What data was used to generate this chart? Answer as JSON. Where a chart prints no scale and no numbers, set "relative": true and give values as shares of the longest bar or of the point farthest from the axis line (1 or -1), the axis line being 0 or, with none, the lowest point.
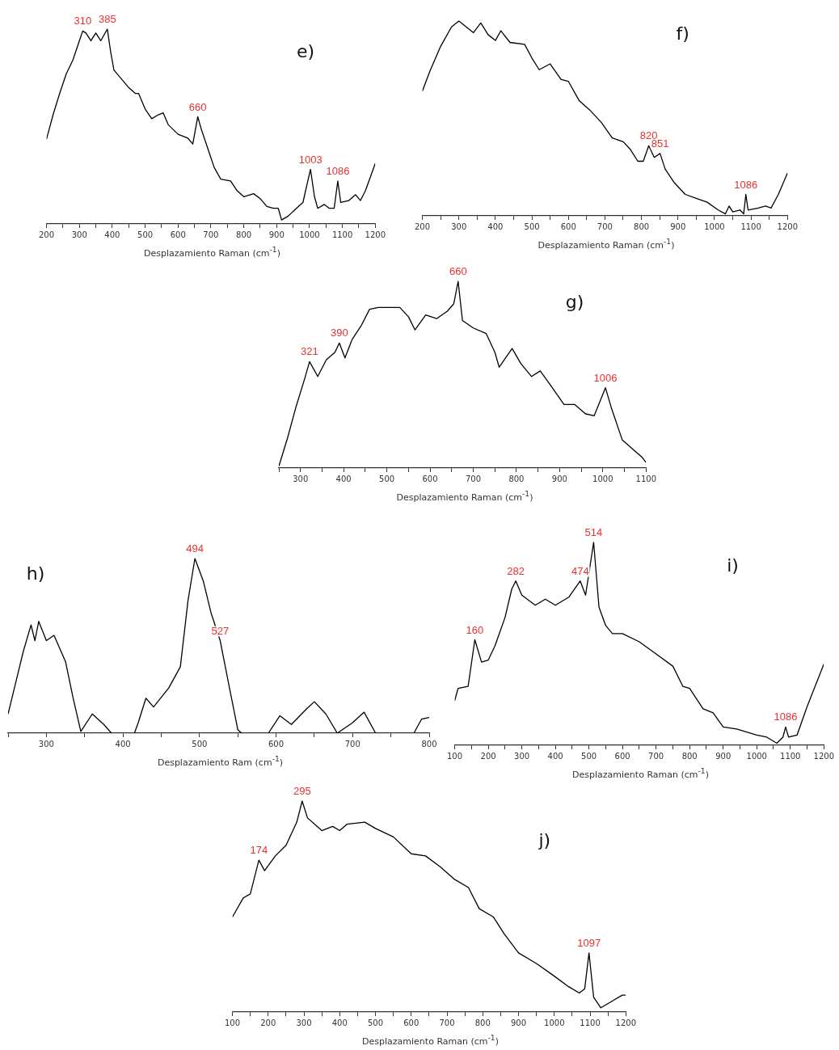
{
  "chart_data": [
    {
      "type": "line",
      "title": "e)",
      "xlabel": "Desplazamiento Raman (cm$^{-1}$)",
      "relative": true,
      "color": "#000000",
      "xlim": [
        200,
        1200
      ],
      "xticks": [
        200,
        {
          "value": 250,
          "label": null
        },
        300,
        {
          "value": 350,
          "label": null
        },
        400,
        {
          "value": 450,
          "label": null
        },
        500,
        {
          "value": 550,
          "label": null
        },
        600,
        {
          "value": 650,
          "label": null
        },
        700,
        {
          "value": 750,
          "label": null
        },
        800,
        {
          "value": 850,
          "label": null
        },
        900,
        {
          "value": 950,
          "label": null
        },
        1000,
        {
          "value": 1050,
          "label": null
        },
        1100,
        {
          "value": 1150,
          "label": null
        },
        1200
      ],
      "x": [
        200,
        220,
        240,
        260,
        280,
        300,
        310,
        320,
        335,
        350,
        365,
        375,
        385,
        395,
        405,
        430,
        450,
        470,
        480,
        500,
        520,
        540,
        555,
        570,
        600,
        630,
        645,
        660,
        672,
        690,
        710,
        730,
        760,
        780,
        800,
        830,
        850,
        870,
        890,
        905,
        915,
        935,
        960,
        980,
        992,
        1003,
        1015,
        1025,
        1045,
        1060,
        1075,
        1086,
        1095,
        1120,
        1140,
        1155,
        1170,
        1200
      ],
      "values": [
        0.435,
        0.56,
        0.67,
        0.77,
        0.84,
        0.94,
        0.99,
        0.98,
        0.94,
        0.98,
        0.94,
        0.97,
        1.0,
        0.885,
        0.79,
        0.74,
        0.7,
        0.67,
        0.67,
        0.59,
        0.54,
        0.56,
        0.57,
        0.51,
        0.46,
        0.44,
        0.41,
        0.55,
        0.48,
        0.39,
        0.29,
        0.23,
        0.22,
        0.17,
        0.14,
        0.155,
        0.13,
        0.09,
        0.08,
        0.08,
        0.02,
        0.04,
        0.08,
        0.11,
        0.2,
        0.28,
        0.14,
        0.08,
        0.1,
        0.08,
        0.08,
        0.22,
        0.11,
        0.12,
        0.15,
        0.12,
        0.17,
        0.31
      ],
      "annotations": [
        {
          "text": "310",
          "x": 310,
          "y": 0.99
        },
        {
          "text": "385",
          "x": 385,
          "y": 1.0
        },
        {
          "text": "660",
          "x": 660,
          "y": 0.55
        },
        {
          "text": "1003",
          "x": 1003,
          "y": 0.28
        },
        {
          "text": "1086",
          "x": 1086,
          "y": 0.22
        }
      ]
    },
    {
      "type": "line",
      "title": "f)",
      "xlabel": "Desplazamiento Raman (cm$^{-1}$)",
      "relative": true,
      "color": "#000000",
      "xlim": [
        200,
        1200
      ],
      "xticks": [
        200,
        {
          "value": 250,
          "label": null
        },
        300,
        {
          "value": 350,
          "label": null
        },
        400,
        {
          "value": 450,
          "label": null
        },
        500,
        {
          "value": 550,
          "label": null
        },
        600,
        {
          "value": 650,
          "label": null
        },
        700,
        {
          "value": 750,
          "label": null
        },
        800,
        {
          "value": 850,
          "label": null
        },
        900,
        {
          "value": 950,
          "label": null
        },
        1000,
        {
          "value": 1050,
          "label": null
        },
        1100,
        {
          "value": 1150,
          "label": null
        },
        1200
      ],
      "x": [
        200,
        220,
        250,
        280,
        300,
        320,
        340,
        360,
        380,
        400,
        415,
        440,
        480,
        500,
        520,
        550,
        580,
        600,
        630,
        660,
        690,
        720,
        750,
        770,
        790,
        805,
        820,
        835,
        851,
        865,
        890,
        920,
        950,
        980,
        1010,
        1030,
        1040,
        1050,
        1070,
        1080,
        1086,
        1092,
        1120,
        1140,
        1155,
        1175,
        1200
      ],
      "values": [
        0.64,
        0.74,
        0.87,
        0.97,
        1.0,
        0.97,
        0.94,
        0.99,
        0.93,
        0.9,
        0.95,
        0.89,
        0.88,
        0.81,
        0.75,
        0.78,
        0.7,
        0.69,
        0.59,
        0.54,
        0.48,
        0.4,
        0.38,
        0.34,
        0.28,
        0.28,
        0.36,
        0.3,
        0.32,
        0.24,
        0.17,
        0.11,
        0.09,
        0.07,
        0.03,
        0.01,
        0.05,
        0.02,
        0.03,
        0.01,
        0.11,
        0.03,
        0.04,
        0.05,
        0.04,
        0.11,
        0.22
      ],
      "annotations": [
        {
          "text": "820",
          "x": 820,
          "y": 0.36
        },
        {
          "text": "851",
          "x": 851,
          "y": 0.32
        },
        {
          "text": "1086",
          "x": 1086,
          "y": 0.11
        }
      ]
    },
    {
      "type": "line",
      "title": "g)",
      "xlabel": "Desplazamiento Raman (cm$^{-1}$)",
      "relative": true,
      "color": "#000000",
      "xlim": [
        250,
        1100
      ],
      "xticks": [
        {
          "value": 250,
          "label": null
        },
        300,
        {
          "value": 350,
          "label": null
        },
        400,
        {
          "value": 450,
          "label": null
        },
        500,
        {
          "value": 550,
          "label": null
        },
        600,
        {
          "value": 650,
          "label": null
        },
        700,
        {
          "value": 750,
          "label": null
        },
        800,
        {
          "value": 850,
          "label": null
        },
        900,
        {
          "value": 950,
          "label": null
        },
        1000,
        {
          "value": 1050,
          "label": null
        },
        1100
      ],
      "x": [
        250,
        270,
        290,
        310,
        321,
        340,
        360,
        380,
        390,
        403,
        420,
        440,
        460,
        480,
        500,
        530,
        550,
        565,
        590,
        615,
        640,
        655,
        665,
        675,
        700,
        730,
        750,
        760,
        775,
        790,
        810,
        835,
        855,
        880,
        910,
        935,
        960,
        980,
        1006,
        1020,
        1045,
        1070,
        1090,
        1100
      ],
      "values": [
        0.01,
        0.16,
        0.33,
        0.48,
        0.57,
        0.49,
        0.58,
        0.62,
        0.67,
        0.59,
        0.69,
        0.76,
        0.85,
        0.86,
        0.86,
        0.86,
        0.81,
        0.74,
        0.82,
        0.8,
        0.84,
        0.88,
        1.0,
        0.79,
        0.75,
        0.72,
        0.62,
        0.54,
        0.59,
        0.64,
        0.56,
        0.49,
        0.52,
        0.44,
        0.34,
        0.34,
        0.29,
        0.28,
        0.43,
        0.32,
        0.15,
        0.1,
        0.06,
        0.03
      ],
      "annotations": [
        {
          "text": "321",
          "x": 321,
          "y": 0.57
        },
        {
          "text": "390",
          "x": 390,
          "y": 0.67
        },
        {
          "text": "660",
          "x": 665,
          "y": 1.0
        },
        {
          "text": "1006",
          "x": 1006,
          "y": 0.43
        }
      ]
    },
    {
      "type": "line",
      "title": "h)",
      "xlabel": "Desplazamiento Ram (cm$^{-1}$)",
      "relative": true,
      "color": "#000000",
      "xlim": [
        250,
        800
      ],
      "xticks": [
        {
          "value": 250,
          "label": null
        },
        300,
        {
          "value": 350,
          "label": null
        },
        400,
        {
          "value": 450,
          "label": null
        },
        500,
        {
          "value": 550,
          "label": null
        },
        600,
        {
          "value": 650,
          "label": null
        },
        700,
        {
          "value": 750,
          "label": null
        },
        800
      ],
      "x": [
        250,
        260,
        270,
        280,
        285,
        290,
        300,
        310,
        325,
        335,
        345,
        360,
        375,
        385,
        400,
        415,
        420,
        430,
        440,
        460,
        475,
        485,
        494,
        505,
        515,
        527,
        540,
        550,
        555,
        570,
        590,
        605,
        620,
        640,
        650,
        665,
        680,
        700,
        715,
        730,
        755,
        780,
        790,
        800
      ],
      "values": [
        0.11,
        0.29,
        0.47,
        0.62,
        0.53,
        0.64,
        0.53,
        0.56,
        0.41,
        0.2,
        0.01,
        0.11,
        0.05,
        0.0,
        null,
        0.0,
        0.06,
        0.2,
        0.15,
        0.26,
        0.38,
        0.76,
        1.0,
        0.87,
        0.69,
        0.53,
        0.24,
        0.02,
        0.0,
        null,
        0.0,
        0.1,
        0.05,
        0.14,
        0.18,
        0.11,
        0.0,
        0.06,
        0.12,
        0.0,
        null,
        0.0,
        0.08,
        0.09
      ],
      "annotations": [
        {
          "text": "494",
          "x": 494,
          "y": 1.0
        },
        {
          "text": "527",
          "x": 527,
          "y": 0.53
        }
      ]
    },
    {
      "type": "line",
      "title": "i)",
      "xlabel": "Desplazamiento Raman (cm$^{-1}$)",
      "relative": true,
      "color": "#000000",
      "xlim": [
        100,
        1200
      ],
      "xticks": [
        100,
        {
          "value": 150,
          "label": null
        },
        200,
        {
          "value": 250,
          "label": null
        },
        300,
        {
          "value": 350,
          "label": null
        },
        400,
        {
          "value": 450,
          "label": null
        },
        500,
        {
          "value": 550,
          "label": null
        },
        600,
        {
          "value": 650,
          "label": null
        },
        700,
        {
          "value": 750,
          "label": null
        },
        800,
        {
          "value": 850,
          "label": null
        },
        900,
        {
          "value": 950,
          "label": null
        },
        1000,
        {
          "value": 1050,
          "label": null
        },
        1100,
        {
          "value": 1150,
          "label": null
        },
        1200
      ],
      "x": [
        100,
        110,
        140,
        160,
        180,
        200,
        220,
        250,
        270,
        282,
        300,
        340,
        370,
        400,
        440,
        474,
        490,
        514,
        530,
        550,
        570,
        600,
        650,
        700,
        750,
        780,
        800,
        840,
        870,
        900,
        940,
        1000,
        1030,
        1060,
        1078,
        1086,
        1095,
        1120,
        1150,
        1200
      ],
      "values": [
        0.22,
        0.28,
        0.29,
        0.52,
        0.41,
        0.42,
        0.49,
        0.63,
        0.77,
        0.81,
        0.74,
        0.69,
        0.72,
        0.69,
        0.73,
        0.81,
        0.74,
        1.0,
        0.68,
        0.59,
        0.55,
        0.55,
        0.51,
        0.45,
        0.39,
        0.29,
        0.28,
        0.18,
        0.16,
        0.09,
        0.08,
        0.05,
        0.04,
        0.01,
        0.04,
        0.09,
        0.04,
        0.05,
        0.19,
        0.4
      ],
      "annotations": [
        {
          "text": "160",
          "x": 160,
          "y": 0.52
        },
        {
          "text": "282",
          "x": 282,
          "y": 0.81
        },
        {
          "text": "474",
          "x": 474,
          "y": 0.81
        },
        {
          "text": "514",
          "x": 514,
          "y": 1.0
        },
        {
          "text": "1086",
          "x": 1086,
          "y": 0.09
        }
      ]
    },
    {
      "type": "line",
      "title": "j)",
      "xlabel": "Desplazamiento Raman (cm$^{-1}$)",
      "relative": true,
      "color": "#000000",
      "xlim": [
        100,
        1200
      ],
      "xticks": [
        100,
        {
          "value": 150,
          "label": null
        },
        200,
        {
          "value": 250,
          "label": null
        },
        300,
        {
          "value": 350,
          "label": null
        },
        400,
        {
          "value": 450,
          "label": null
        },
        500,
        {
          "value": 550,
          "label": null
        },
        600,
        {
          "value": 650,
          "label": null
        },
        700,
        {
          "value": 750,
          "label": null
        },
        800,
        {
          "value": 850,
          "label": null
        },
        900,
        {
          "value": 950,
          "label": null
        },
        1000,
        {
          "value": 1050,
          "label": null
        },
        1100,
        {
          "value": 1150,
          "label": null
        },
        1200
      ],
      "x": [
        100,
        130,
        150,
        174,
        190,
        220,
        250,
        280,
        295,
        310,
        350,
        380,
        400,
        420,
        470,
        500,
        550,
        600,
        640,
        680,
        720,
        760,
        790,
        830,
        860,
        900,
        950,
        1000,
        1040,
        1070,
        1085,
        1097,
        1110,
        1130,
        1160,
        1190,
        1200
      ],
      "values": [
        0.45,
        0.54,
        0.56,
        0.72,
        0.67,
        0.74,
        0.79,
        0.9,
        1.0,
        0.92,
        0.86,
        0.88,
        0.86,
        0.89,
        0.9,
        0.87,
        0.83,
        0.75,
        0.74,
        0.69,
        0.63,
        0.59,
        0.49,
        0.45,
        0.37,
        0.28,
        0.23,
        0.17,
        0.12,
        0.09,
        0.11,
        0.28,
        0.07,
        0.02,
        0.05,
        0.08,
        0.08
      ],
      "annotations": [
        {
          "text": "174",
          "x": 174,
          "y": 0.72
        },
        {
          "text": "295",
          "x": 295,
          "y": 1.0
        },
        {
          "text": "1097",
          "x": 1097,
          "y": 0.28
        }
      ]
    }
  ]
}
